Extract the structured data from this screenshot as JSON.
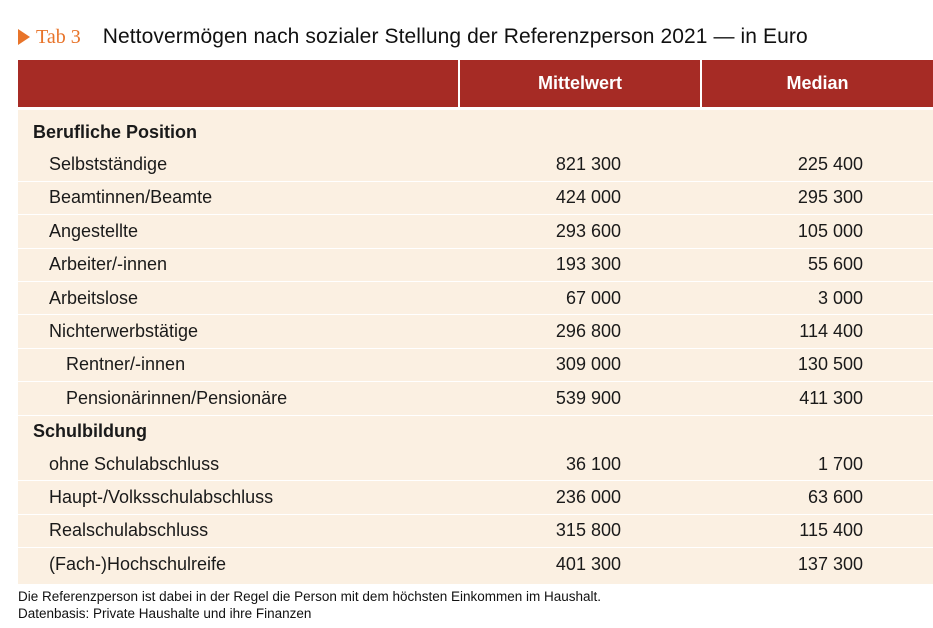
{
  "header": {
    "tab_label": "Tab 3",
    "title": "Nettovermögen nach sozialer Stellung der Referenzperson 2021 — in Euro"
  },
  "table": {
    "columns": [
      "",
      "Mittelwert",
      "Median"
    ],
    "sections": [
      {
        "heading": "Berufliche Position",
        "rows": [
          {
            "label": "Selbstständige",
            "level": 1,
            "mittelwert": "821 300",
            "median": "225 400"
          },
          {
            "label": "Beamtinnen/Beamte",
            "level": 1,
            "mittelwert": "424 000",
            "median": "295 300"
          },
          {
            "label": "Angestellte",
            "level": 1,
            "mittelwert": "293 600",
            "median": "105 000"
          },
          {
            "label": "Arbeiter/-innen",
            "level": 1,
            "mittelwert": "193 300",
            "median": "55 600"
          },
          {
            "label": "Arbeitslose",
            "level": 1,
            "mittelwert": "67 000",
            "median": "3 000"
          },
          {
            "label": "Nichterwerbstätige",
            "level": 1,
            "mittelwert": "296 800",
            "median": "114 400"
          },
          {
            "label": "Rentner/-innen",
            "level": 2,
            "mittelwert": "309 000",
            "median": "130 500"
          },
          {
            "label": "Pensionärinnen/Pensionäre",
            "level": 2,
            "mittelwert": "539 900",
            "median": "411 300"
          }
        ]
      },
      {
        "heading": "Schulbildung",
        "rows": [
          {
            "label": "ohne Schulabschluss",
            "level": 1,
            "mittelwert": "36 100",
            "median": "1 700"
          },
          {
            "label": "Haupt-/Volksschulabschluss",
            "level": 1,
            "mittelwert": "236 000",
            "median": "63 600"
          },
          {
            "label": "Realschulabschluss",
            "level": 1,
            "mittelwert": "315 800",
            "median": "115 400"
          },
          {
            "label": "(Fach-)Hochschulreife",
            "level": 1,
            "mittelwert": "401 300",
            "median": "137 300"
          }
        ]
      }
    ]
  },
  "footnotes": [
    "Die Referenzperson ist dabei in der Regel die Person mit dem höchsten Einkommen im Haushalt.",
    "Datenbasis: Private Haushalte und ihre Finanzen"
  ],
  "colors": {
    "accent_orange": "#e8742a",
    "header_red": "#a62b25",
    "row_background": "#fbf0e2"
  },
  "icons": {
    "tab_marker": "triangle-right-icon"
  }
}
